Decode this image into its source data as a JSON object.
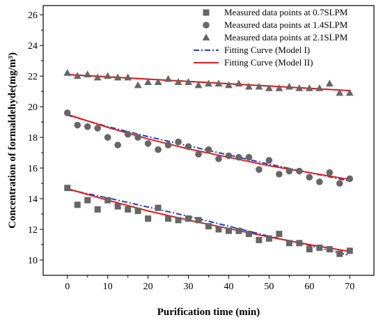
{
  "chart_data": {
    "type": "scatter",
    "title": "",
    "xlabel": "Purification time (min)",
    "ylabel": "Concentration of formaldehyde(mg/m³)",
    "xlim": [
      -6,
      76
    ],
    "ylim": [
      9,
      26.6
    ],
    "xticks": [
      0,
      10,
      20,
      30,
      40,
      50,
      60,
      70
    ],
    "yticks": [
      10,
      12,
      14,
      16,
      18,
      20,
      22,
      24,
      26
    ],
    "grid": false,
    "legend_position": "top-right",
    "colors": {
      "points": "#666666",
      "model1": "#1f3fbf",
      "model2": "#e41a1c"
    },
    "series": [
      {
        "name": "Measured data points at 0.7SLPM",
        "marker": "square",
        "x": [
          0,
          2.5,
          5,
          7.5,
          10,
          12.5,
          15,
          17.5,
          20,
          22.5,
          25,
          27.5,
          30,
          32.5,
          35,
          37.5,
          40,
          42.5,
          45,
          47.5,
          50,
          52.5,
          55,
          57.5,
          60,
          62.5,
          65,
          67.5,
          70
        ],
        "y": [
          14.7,
          13.6,
          13.9,
          13.3,
          13.9,
          13.5,
          13.3,
          13.2,
          12.7,
          13.4,
          12.7,
          12.6,
          12.7,
          12.6,
          12.2,
          12.0,
          11.9,
          11.9,
          11.7,
          11.3,
          11.4,
          11.7,
          11.1,
          11.1,
          10.7,
          10.8,
          10.7,
          10.4,
          10.6
        ]
      },
      {
        "name": "Measured data points at 1.4SLPM",
        "marker": "circle",
        "x": [
          0,
          2.5,
          5,
          7.5,
          10,
          12.5,
          15,
          17.5,
          20,
          22.5,
          25,
          27.5,
          30,
          32.5,
          35,
          37.5,
          40,
          42.5,
          45,
          47.5,
          50,
          52.5,
          55,
          57.5,
          60,
          62.5,
          65,
          67.5,
          70
        ],
        "y": [
          19.6,
          18.8,
          18.7,
          18.6,
          18.0,
          17.5,
          18.2,
          18.0,
          17.6,
          17.2,
          17.5,
          17.7,
          17.4,
          16.9,
          17.2,
          16.6,
          16.8,
          16.7,
          16.7,
          15.9,
          16.5,
          15.6,
          15.8,
          15.8,
          15.4,
          15.1,
          15.7,
          15.0,
          15.3
        ]
      },
      {
        "name": "Measured data points at 2.1SLPM",
        "marker": "triangle",
        "x": [
          0,
          2.5,
          5,
          7.5,
          10,
          12.5,
          15,
          17.5,
          20,
          22.5,
          25,
          27.5,
          30,
          32.5,
          35,
          37.5,
          40,
          42.5,
          45,
          47.5,
          50,
          52.5,
          55,
          57.5,
          60,
          62.5,
          65,
          67.5,
          70
        ],
        "y": [
          22.2,
          22.0,
          22.1,
          21.9,
          22.0,
          21.9,
          21.9,
          21.4,
          21.6,
          21.6,
          21.8,
          21.6,
          21.6,
          21.4,
          21.5,
          21.5,
          21.4,
          21.5,
          21.3,
          21.3,
          21.2,
          21.2,
          21.3,
          21.2,
          21.2,
          21.2,
          21.5,
          20.9,
          20.9
        ]
      },
      {
        "name": "Fitting Curve (Model I)",
        "style": "dash-dot",
        "curves": [
          {
            "x": [
              0,
              10,
              20,
              30,
              40,
              50,
              60,
              70
            ],
            "y": [
              14.6,
              14.05,
              13.45,
              12.85,
              12.2,
              11.55,
              10.95,
              10.3
            ]
          },
          {
            "x": [
              0,
              10,
              20,
              30,
              40,
              50,
              60,
              70
            ],
            "y": [
              19.45,
              18.7,
              18.05,
              17.45,
              16.85,
              16.25,
              15.7,
              15.15
            ]
          },
          {
            "x": [
              0,
              70
            ],
            "y": [
              22.1,
              21.05
            ]
          }
        ]
      },
      {
        "name": "Fitting Curve (Model II)",
        "style": "solid",
        "curves": [
          {
            "x": [
              0,
              10,
              20,
              30,
              40,
              50,
              60,
              70
            ],
            "y": [
              14.65,
              13.9,
              13.2,
              12.6,
              12.05,
              11.5,
              11.0,
              10.55
            ]
          },
          {
            "x": [
              0,
              10,
              20,
              30,
              40,
              50,
              60,
              70
            ],
            "y": [
              19.5,
              18.65,
              17.9,
              17.25,
              16.7,
              16.15,
              15.7,
              15.25
            ]
          },
          {
            "x": [
              0,
              70
            ],
            "y": [
              22.1,
              21.05
            ]
          }
        ]
      }
    ]
  }
}
